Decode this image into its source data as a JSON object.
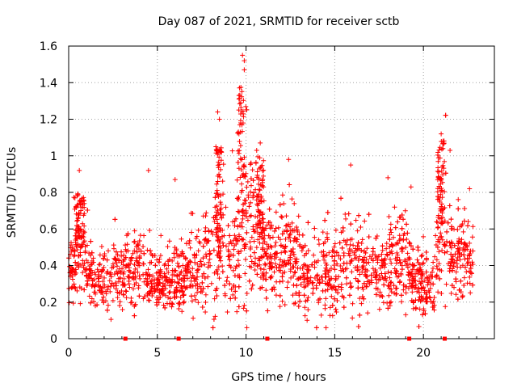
{
  "chart_data": {
    "type": "scatter",
    "title": "Day 087 of 2021, SRMTID for receiver sctb",
    "xlabel": "GPS time / hours",
    "ylabel": "SRMTID / TECUs",
    "xlim": [
      0,
      24
    ],
    "ylim": [
      0,
      1.6
    ],
    "xticks": [
      0,
      5,
      10,
      15,
      20
    ],
    "xtick_labels": [
      "0",
      "5",
      "10",
      "15",
      "20"
    ],
    "yticks": [
      0,
      0.2,
      0.4,
      0.6,
      0.8,
      1.0,
      1.2,
      1.4,
      1.6
    ],
    "ytick_labels": [
      "0",
      "0.2",
      "0.4",
      "0.6",
      "0.8",
      "1",
      "1.2",
      "1.4",
      "1.6"
    ],
    "grid": true,
    "series_color": "#ff0000",
    "marker": "plus",
    "gap_markers_x": [
      3.2,
      6.2,
      11.2,
      19.2,
      21.2
    ],
    "points_x_start": 0.0,
    "points_x_end": 22.8,
    "points_count": 2600,
    "envelope": [
      {
        "x": 0.0,
        "typical": 0.36,
        "spread": 0.08
      },
      {
        "x": 0.5,
        "typical": 0.5,
        "spread": 0.14
      },
      {
        "x": 1.0,
        "typical": 0.42,
        "spread": 0.12
      },
      {
        "x": 1.5,
        "typical": 0.3,
        "spread": 0.06
      },
      {
        "x": 2.0,
        "typical": 0.32,
        "spread": 0.08
      },
      {
        "x": 3.0,
        "typical": 0.35,
        "spread": 0.1
      },
      {
        "x": 4.0,
        "typical": 0.4,
        "spread": 0.12
      },
      {
        "x": 5.0,
        "typical": 0.3,
        "spread": 0.06
      },
      {
        "x": 6.0,
        "typical": 0.32,
        "spread": 0.08
      },
      {
        "x": 7.0,
        "typical": 0.36,
        "spread": 0.1
      },
      {
        "x": 8.0,
        "typical": 0.42,
        "spread": 0.14
      },
      {
        "x": 8.5,
        "typical": 0.6,
        "spread": 0.22
      },
      {
        "x": 9.0,
        "typical": 0.38,
        "spread": 0.1
      },
      {
        "x": 9.8,
        "typical": 0.65,
        "spread": 0.3
      },
      {
        "x": 10.5,
        "typical": 0.55,
        "spread": 0.2
      },
      {
        "x": 11.5,
        "typical": 0.42,
        "spread": 0.1
      },
      {
        "x": 12.5,
        "typical": 0.48,
        "spread": 0.14
      },
      {
        "x": 13.5,
        "typical": 0.36,
        "spread": 0.1
      },
      {
        "x": 15.0,
        "typical": 0.38,
        "spread": 0.12
      },
      {
        "x": 16.0,
        "typical": 0.42,
        "spread": 0.14
      },
      {
        "x": 17.0,
        "typical": 0.36,
        "spread": 0.1
      },
      {
        "x": 18.0,
        "typical": 0.4,
        "spread": 0.12
      },
      {
        "x": 19.0,
        "typical": 0.44,
        "spread": 0.14
      },
      {
        "x": 19.5,
        "typical": 0.28,
        "spread": 0.08
      },
      {
        "x": 20.5,
        "typical": 0.32,
        "spread": 0.1
      },
      {
        "x": 21.0,
        "typical": 0.6,
        "spread": 0.22
      },
      {
        "x": 21.5,
        "typical": 0.46,
        "spread": 0.12
      },
      {
        "x": 22.8,
        "typical": 0.42,
        "spread": 0.12
      }
    ],
    "notable_peaks": [
      {
        "x": 9.8,
        "y": 1.55
      },
      {
        "x": 9.9,
        "y": 1.52
      },
      {
        "x": 9.9,
        "y": 1.47
      },
      {
        "x": 9.6,
        "y": 1.33
      },
      {
        "x": 9.7,
        "y": 1.29
      },
      {
        "x": 8.4,
        "y": 1.24
      },
      {
        "x": 8.5,
        "y": 1.2
      },
      {
        "x": 9.7,
        "y": 1.18
      },
      {
        "x": 9.6,
        "y": 1.12
      },
      {
        "x": 21.0,
        "y": 1.12
      },
      {
        "x": 21.1,
        "y": 1.08
      },
      {
        "x": 21.1,
        "y": 1.04
      },
      {
        "x": 21.5,
        "y": 1.03
      },
      {
        "x": 10.8,
        "y": 1.07
      },
      {
        "x": 10.6,
        "y": 1.03
      },
      {
        "x": 8.3,
        "y": 1.05
      },
      {
        "x": 12.4,
        "y": 0.98
      },
      {
        "x": 15.9,
        "y": 0.95
      },
      {
        "x": 4.5,
        "y": 0.92
      },
      {
        "x": 0.6,
        "y": 0.92
      },
      {
        "x": 6.0,
        "y": 0.87
      },
      {
        "x": 18.0,
        "y": 0.88
      },
      {
        "x": 19.3,
        "y": 0.83
      },
      {
        "x": 22.6,
        "y": 0.82
      }
    ]
  }
}
